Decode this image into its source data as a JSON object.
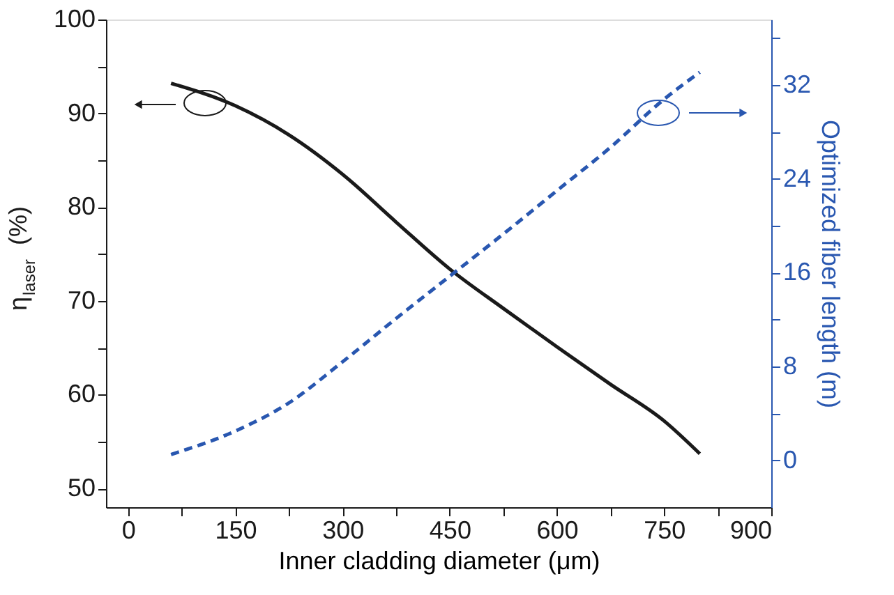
{
  "chart_data": {
    "type": "line",
    "xlabel": "Inner cladding diameter (μm)",
    "ylabel": "η$_{laser}$(%)",
    "y2label": "Optimized fiber length (m)",
    "x": [
      60,
      150,
      225,
      300,
      375,
      450,
      525,
      600,
      675,
      750,
      800
    ],
    "series": [
      {
        "color": "#1a1a1a",
        "line_style": "solid",
        "values": [
          93.2,
          90.8,
          87.7,
          83.5,
          78.4,
          73.4,
          69.2,
          65.1,
          61.1,
          57.2,
          53.7
        ]
      },
      {
        "color": "#2957b0",
        "line_style": "dashed",
        "axis": "y2",
        "values": [
          0.5,
          2.5,
          4.9,
          8.4,
          12.1,
          15.7,
          19.3,
          23.0,
          26.7,
          30.8,
          33.1
        ]
      }
    ],
    "xlim": [
      -31,
      900
    ],
    "xticks": [
      0,
      {
        "value": 75,
        "label": null
      },
      150,
      {
        "value": 225,
        "label": null
      },
      300,
      {
        "value": 375,
        "label": null
      },
      450,
      {
        "value": 525,
        "label": null
      },
      600,
      {
        "value": 675,
        "label": null
      },
      750,
      {
        "value": 825,
        "label": null
      },
      900
    ],
    "ylim": [
      48,
      100
    ],
    "yticks": [
      50,
      {
        "value": 55,
        "label": null
      },
      60,
      {
        "value": 65,
        "label": null
      },
      70,
      {
        "value": 75,
        "label": null
      },
      80,
      {
        "value": 85,
        "label": null
      },
      90,
      {
        "value": 95,
        "label": null
      },
      100
    ],
    "y2lim": [
      -4,
      37.6
    ],
    "y2ticks": [
      0,
      {
        "value": 4,
        "label": null
      },
      8,
      {
        "value": 12,
        "label": null
      },
      16,
      {
        "value": 20,
        "label": null
      },
      24,
      {
        "value": 28,
        "label": null
      },
      32,
      {
        "value": 36,
        "label": null
      }
    ],
    "grid": false,
    "marker": "none"
  }
}
